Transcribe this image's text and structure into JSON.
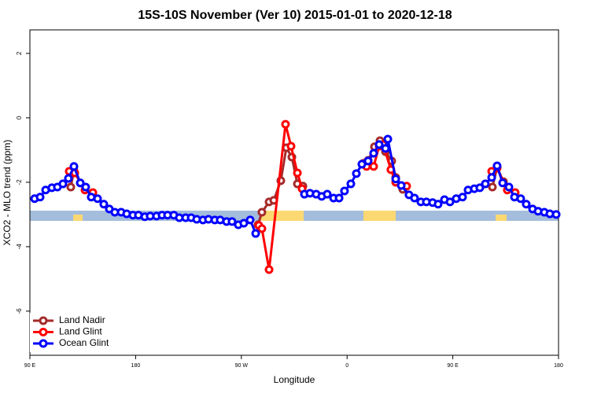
{
  "chart_data": {
    "type": "line",
    "title": "15S-10S November (Ver 10)   2015-01-01 to 2020-12-18",
    "xlabel": "Longitude",
    "ylabel": "XCO2 - MLO trend (ppm)",
    "xlim": [
      90,
      540
    ],
    "ylim": [
      -7.37,
      2.73
    ],
    "xticks": [
      {
        "value": 90,
        "label": "90 E"
      },
      180,
      {
        "value": 270,
        "label": "90 W"
      },
      {
        "value": 360,
        "label": "0"
      },
      {
        "value": 450,
        "label": "90 E"
      },
      {
        "value": 540,
        "label": "180"
      }
    ],
    "yticks": [
      -6,
      -4,
      -2,
      0,
      2
    ],
    "legend": "bottom-left",
    "series": [
      {
        "name": "Land Nadir",
        "color": "#a52a2a",
        "x": [
          124.8,
          127.5,
          132.9,
          null,
          284.2,
          287.5,
          293.6,
          297.6,
          303.6,
          308.3,
          313.0,
          317.7,
          322.4,
          null,
          373.9,
          377.9,
          383.3,
          388.0,
          392.7,
          398.0,
          401.4,
          407.4,
          null,
          483.7,
          487.7,
          493.1
        ],
        "values": [
          -2.15,
          -1.63,
          -2.02,
          null,
          -3.32,
          -2.93,
          -2.61,
          -2.56,
          -1.95,
          -0.93,
          -1.22,
          -2.05,
          -2.12,
          null,
          -1.41,
          -1.32,
          -0.9,
          -0.71,
          -1.05,
          -1.34,
          -1.85,
          -2.22,
          null,
          -2.15,
          -1.54,
          -1.98
        ]
      },
      {
        "name": "Land Glint",
        "color": "#ff0000",
        "x": [
          123.5,
          128.2,
          136.9,
          143.6,
          null,
          284.9,
          287.5,
          293.6,
          307.6,
          312.3,
          317.7,
          321.7,
          null,
          376.6,
          382.6,
          387.3,
          390.7,
          397.3,
          401.4,
          410.7,
          null,
          483.1,
          487.7,
          496.4,
          503.1
        ],
        "values": [
          -1.66,
          -1.71,
          -2.24,
          -2.32,
          null,
          -3.34,
          -3.44,
          -4.71,
          -0.2,
          -0.88,
          -1.71,
          -2.2,
          null,
          -1.51,
          -1.51,
          -0.88,
          -0.83,
          -1.61,
          -2.0,
          -2.12,
          null,
          -1.66,
          -1.56,
          -2.24,
          -2.32
        ]
      },
      {
        "name": "Ocean Glint",
        "color": "#0000ff",
        "x": [
          94.0,
          98.7,
          103.4,
          108.7,
          113.4,
          118.1,
          122.8,
          127.5,
          132.9,
          137.5,
          142.2,
          147.6,
          152.9,
          157.6,
          162.3,
          167.7,
          172.4,
          177.7,
          182.4,
          187.8,
          192.4,
          197.8,
          202.5,
          207.2,
          212.5,
          217.2,
          222.6,
          227.3,
          232.0,
          237.3,
          242.0,
          247.4,
          252.0,
          257.4,
          262.1,
          267.4,
          272.1,
          277.5,
          282.2,
          null,
          323.7,
          328.4,
          333.7,
          338.4,
          343.1,
          348.5,
          353.2,
          357.8,
          363.2,
          367.9,
          372.6,
          377.9,
          382.6,
          387.3,
          392.7,
          394.7,
          401.4,
          406.1,
          412.7,
          417.4,
          422.8,
          427.5,
          432.8,
          437.5,
          442.9,
          447.6,
          452.9,
          458.3,
          463.0,
          468.3,
          473.0,
          477.7,
          483.1,
          487.7,
          492.4,
          497.8,
          502.5,
          507.8,
          512.5,
          517.9,
          522.6,
          527.9,
          532.6,
          538.0
        ],
        "values": [
          -2.51,
          -2.46,
          -2.24,
          -2.17,
          -2.15,
          -2.05,
          -1.88,
          -1.51,
          -2.02,
          -2.15,
          -2.46,
          -2.51,
          -2.68,
          -2.83,
          -2.93,
          -2.93,
          -2.98,
          -3.02,
          -3.02,
          -3.07,
          -3.05,
          -3.05,
          -3.02,
          -3.02,
          -3.02,
          -3.1,
          -3.1,
          -3.1,
          -3.15,
          -3.17,
          -3.15,
          -3.17,
          -3.17,
          -3.22,
          -3.22,
          -3.32,
          -3.27,
          -3.17,
          -3.59,
          null,
          -2.37,
          -2.34,
          -2.37,
          -2.44,
          -2.37,
          -2.49,
          -2.49,
          -2.27,
          -2.05,
          -1.73,
          -1.44,
          -1.34,
          -1.1,
          -0.83,
          -0.95,
          -0.66,
          -1.9,
          -2.1,
          -2.39,
          -2.49,
          -2.61,
          -2.61,
          -2.63,
          -2.68,
          -2.54,
          -2.61,
          -2.51,
          -2.46,
          -2.24,
          -2.2,
          -2.17,
          -2.05,
          -1.85,
          -1.49,
          -2.02,
          -2.15,
          -2.46,
          -2.51,
          -2.68,
          -2.83,
          -2.9,
          -2.93,
          -2.98,
          -3.0
        ]
      }
    ]
  }
}
